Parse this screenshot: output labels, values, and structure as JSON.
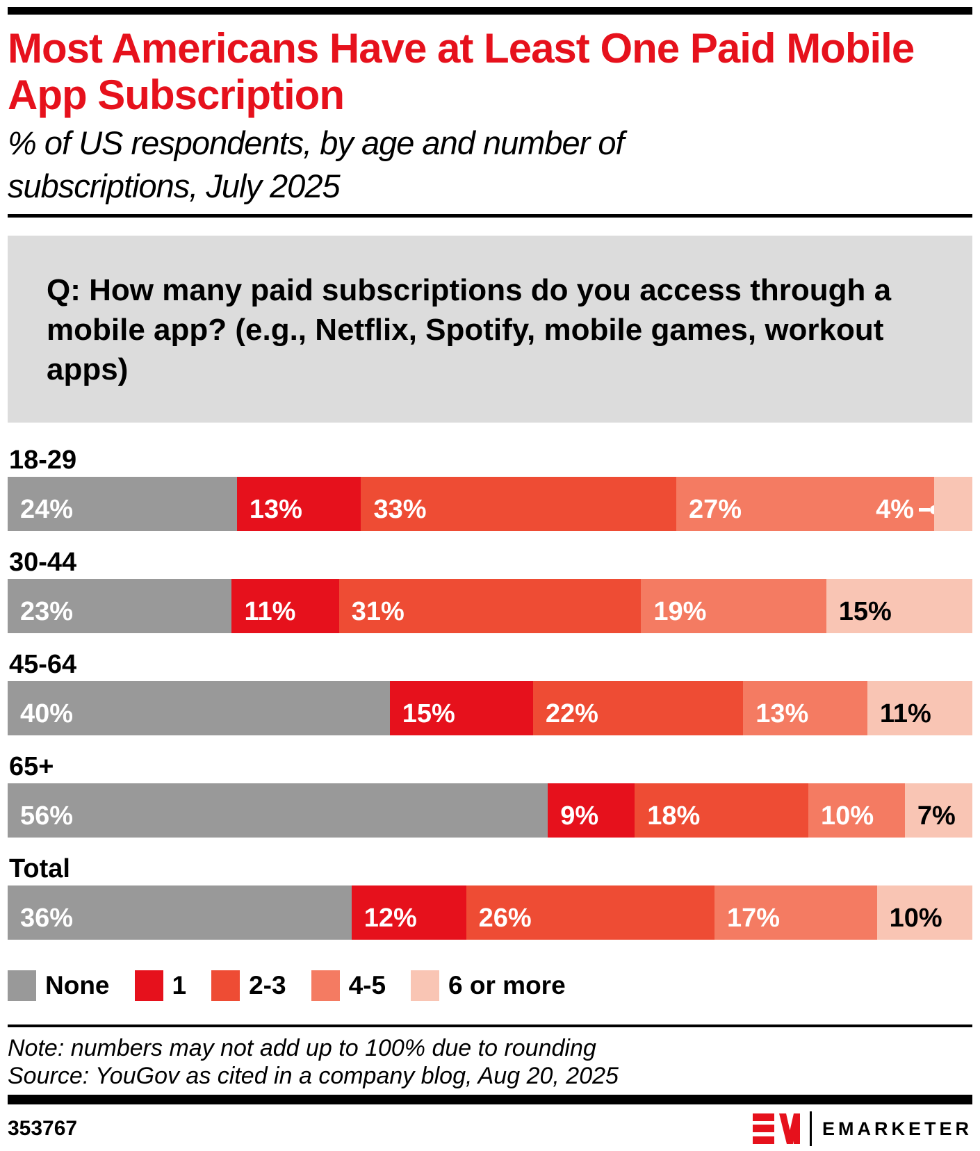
{
  "header": {
    "title_lines": [
      "Most Americans Have at Least One Paid Mobile",
      "App Subscription"
    ],
    "subtitle_lines": [
      "% of US respondents, by age and number of",
      "subscriptions, July 2025"
    ]
  },
  "question_lines": [
    "Q: How many paid subscriptions do you access through a",
    "mobile app? (e.g., Netflix, Spotify, mobile games, workout",
    "apps)"
  ],
  "chart_data": {
    "type": "bar",
    "subtype": "stacked-horizontal",
    "unit": "%",
    "categories": [
      "18-29",
      "30-44",
      "45-64",
      "65+",
      "Total"
    ],
    "series": [
      {
        "name": "None",
        "color": "#999999",
        "values": [
          24,
          23,
          40,
          56,
          36
        ]
      },
      {
        "name": "1",
        "color": "#e6111c",
        "values": [
          13,
          11,
          15,
          9,
          12
        ]
      },
      {
        "name": "2-3",
        "color": "#ee4c34",
        "values": [
          33,
          31,
          22,
          18,
          26
        ]
      },
      {
        "name": "4-5",
        "color": "#f47b62",
        "values": [
          27,
          19,
          13,
          10,
          17
        ]
      },
      {
        "name": "6 or more",
        "color": "#f9c5b4",
        "values": [
          4,
          15,
          11,
          7,
          10
        ]
      }
    ],
    "value_suffix": "%",
    "legend_position": "bottom",
    "callout": {
      "row": "18-29",
      "series": "6 or more",
      "label": "4%"
    },
    "dark_label_series": "6 or more"
  },
  "colors": {
    "brand_red": "#e6111c",
    "question_box_bg": "#dcdcdc",
    "light_label": "#ffffff",
    "dark_label": "#000000"
  },
  "note": "Note: numbers may not add up to 100% due to rounding",
  "source": "Source: YouGov as cited in a company blog, Aug 20, 2025",
  "footer": {
    "chart_id": "353767",
    "brand": "EMARKETER"
  }
}
